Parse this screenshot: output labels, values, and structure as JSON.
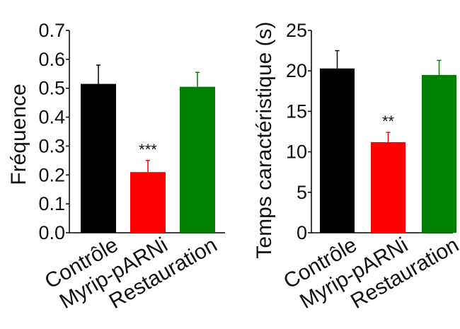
{
  "chart_data": [
    {
      "type": "bar",
      "title": "",
      "xlabel": "",
      "ylabel": "Fréquence",
      "categories": [
        "Contrôle",
        "Myrip-pARNi",
        "Restauration"
      ],
      "values": [
        0.515,
        0.21,
        0.505
      ],
      "errors": [
        0.065,
        0.04,
        0.05
      ],
      "colors": [
        "#000000",
        "#ff0000",
        "#008000"
      ],
      "significance": [
        "",
        "***",
        ""
      ],
      "ylim": [
        0,
        0.7
      ],
      "yticks": [
        "0.0",
        "0.1",
        "0.2",
        "0.3",
        "0.4",
        "0.5",
        "0.6",
        "0.7"
      ],
      "grid": false,
      "legend": "none"
    },
    {
      "type": "bar",
      "title": "",
      "xlabel": "",
      "ylabel": "Temps caractéristique (s)",
      "categories": [
        "Contrôle",
        "Myrip-pARNi",
        "Restauration"
      ],
      "values": [
        20.3,
        11.2,
        19.5
      ],
      "errors": [
        2.2,
        1.2,
        1.8
      ],
      "colors": [
        "#000000",
        "#ff0000",
        "#008000"
      ],
      "significance": [
        "",
        "**",
        ""
      ],
      "ylim": [
        0,
        25
      ],
      "yticks": [
        "0",
        "5",
        "10",
        "15",
        "20",
        "25"
      ],
      "grid": false,
      "legend": "none"
    }
  ]
}
